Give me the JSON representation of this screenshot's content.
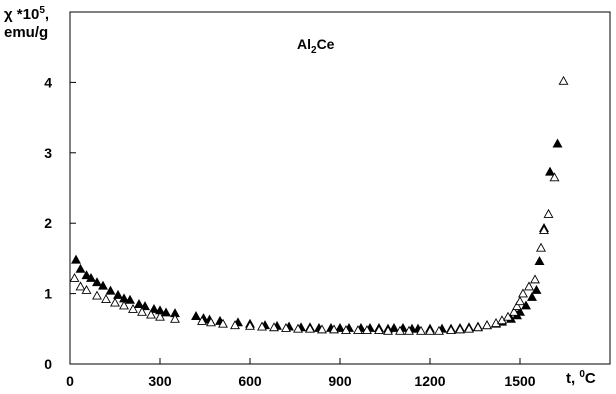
{
  "chart_data": {
    "type": "scatter",
    "title": {
      "prefix": "Al",
      "sub": "2",
      "suffix": "Ce"
    },
    "ylabel": {
      "line1_prefix": "χ *10",
      "line1_sup": "5",
      "line1_suffix": ",",
      "line2": "emu/g"
    },
    "xlabel": {
      "prefix": "t, ",
      "sup": "0",
      "suffix": "C"
    },
    "xlim": [
      0,
      1800
    ],
    "ylim": [
      0,
      5
    ],
    "xticks": [
      0,
      300,
      600,
      900,
      1200,
      1500
    ],
    "yticks": [
      0,
      1,
      2,
      3,
      4
    ],
    "grid": false,
    "series": [
      {
        "marker": "filled-triangle",
        "points": [
          [
            20,
            1.48
          ],
          [
            35,
            1.35
          ],
          [
            55,
            1.26
          ],
          [
            70,
            1.22
          ],
          [
            90,
            1.16
          ],
          [
            110,
            1.11
          ],
          [
            135,
            1.04
          ],
          [
            160,
            0.98
          ],
          [
            180,
            0.93
          ],
          [
            200,
            0.91
          ],
          [
            230,
            0.85
          ],
          [
            250,
            0.82
          ],
          [
            280,
            0.78
          ],
          [
            300,
            0.76
          ],
          [
            320,
            0.73
          ],
          [
            350,
            0.72
          ],
          [
            420,
            0.68
          ],
          [
            445,
            0.65
          ],
          [
            465,
            0.63
          ],
          [
            500,
            0.61
          ],
          [
            560,
            0.59
          ],
          [
            600,
            0.57
          ],
          [
            650,
            0.55
          ],
          [
            690,
            0.54
          ],
          [
            730,
            0.53
          ],
          [
            770,
            0.52
          ],
          [
            800,
            0.52
          ],
          [
            830,
            0.51
          ],
          [
            870,
            0.51
          ],
          [
            900,
            0.51
          ],
          [
            930,
            0.51
          ],
          [
            970,
            0.51
          ],
          [
            1000,
            0.51
          ],
          [
            1030,
            0.51
          ],
          [
            1060,
            0.5
          ],
          [
            1080,
            0.51
          ],
          [
            1110,
            0.51
          ],
          [
            1140,
            0.5
          ],
          [
            1160,
            0.5
          ],
          [
            1200,
            0.5
          ],
          [
            1240,
            0.5
          ],
          [
            1270,
            0.5
          ],
          [
            1300,
            0.51
          ],
          [
            1330,
            0.52
          ],
          [
            1360,
            0.53
          ],
          [
            1390,
            0.55
          ],
          [
            1420,
            0.57
          ],
          [
            1440,
            0.6
          ],
          [
            1470,
            0.64
          ],
          [
            1490,
            0.69
          ],
          [
            1500,
            0.74
          ],
          [
            1520,
            0.83
          ],
          [
            1540,
            0.95
          ],
          [
            1555,
            1.05
          ],
          [
            1565,
            1.46
          ],
          [
            1580,
            1.93
          ],
          [
            1600,
            2.73
          ],
          [
            1625,
            3.13
          ]
        ]
      },
      {
        "marker": "open-triangle",
        "points": [
          [
            15,
            1.22
          ],
          [
            35,
            1.1
          ],
          [
            55,
            1.05
          ],
          [
            90,
            0.97
          ],
          [
            120,
            0.92
          ],
          [
            150,
            0.87
          ],
          [
            180,
            0.83
          ],
          [
            210,
            0.78
          ],
          [
            240,
            0.74
          ],
          [
            270,
            0.7
          ],
          [
            300,
            0.67
          ],
          [
            350,
            0.64
          ],
          [
            440,
            0.61
          ],
          [
            470,
            0.59
          ],
          [
            510,
            0.57
          ],
          [
            550,
            0.55
          ],
          [
            600,
            0.54
          ],
          [
            640,
            0.53
          ],
          [
            680,
            0.52
          ],
          [
            720,
            0.51
          ],
          [
            760,
            0.5
          ],
          [
            800,
            0.5
          ],
          [
            840,
            0.49
          ],
          [
            880,
            0.49
          ],
          [
            920,
            0.48
          ],
          [
            960,
            0.48
          ],
          [
            990,
            0.48
          ],
          [
            1030,
            0.48
          ],
          [
            1060,
            0.47
          ],
          [
            1100,
            0.47
          ],
          [
            1130,
            0.47
          ],
          [
            1170,
            0.47
          ],
          [
            1200,
            0.47
          ],
          [
            1230,
            0.47
          ],
          [
            1270,
            0.48
          ],
          [
            1300,
            0.49
          ],
          [
            1330,
            0.5
          ],
          [
            1360,
            0.52
          ],
          [
            1390,
            0.55
          ],
          [
            1420,
            0.58
          ],
          [
            1440,
            0.62
          ],
          [
            1460,
            0.67
          ],
          [
            1480,
            0.74
          ],
          [
            1490,
            0.82
          ],
          [
            1500,
            0.89
          ],
          [
            1510,
            1.0
          ],
          [
            1530,
            1.1
          ],
          [
            1550,
            1.2
          ],
          [
            1570,
            1.65
          ],
          [
            1580,
            1.9
          ],
          [
            1595,
            2.13
          ],
          [
            1615,
            2.65
          ],
          [
            1645,
            4.02
          ]
        ]
      }
    ]
  }
}
